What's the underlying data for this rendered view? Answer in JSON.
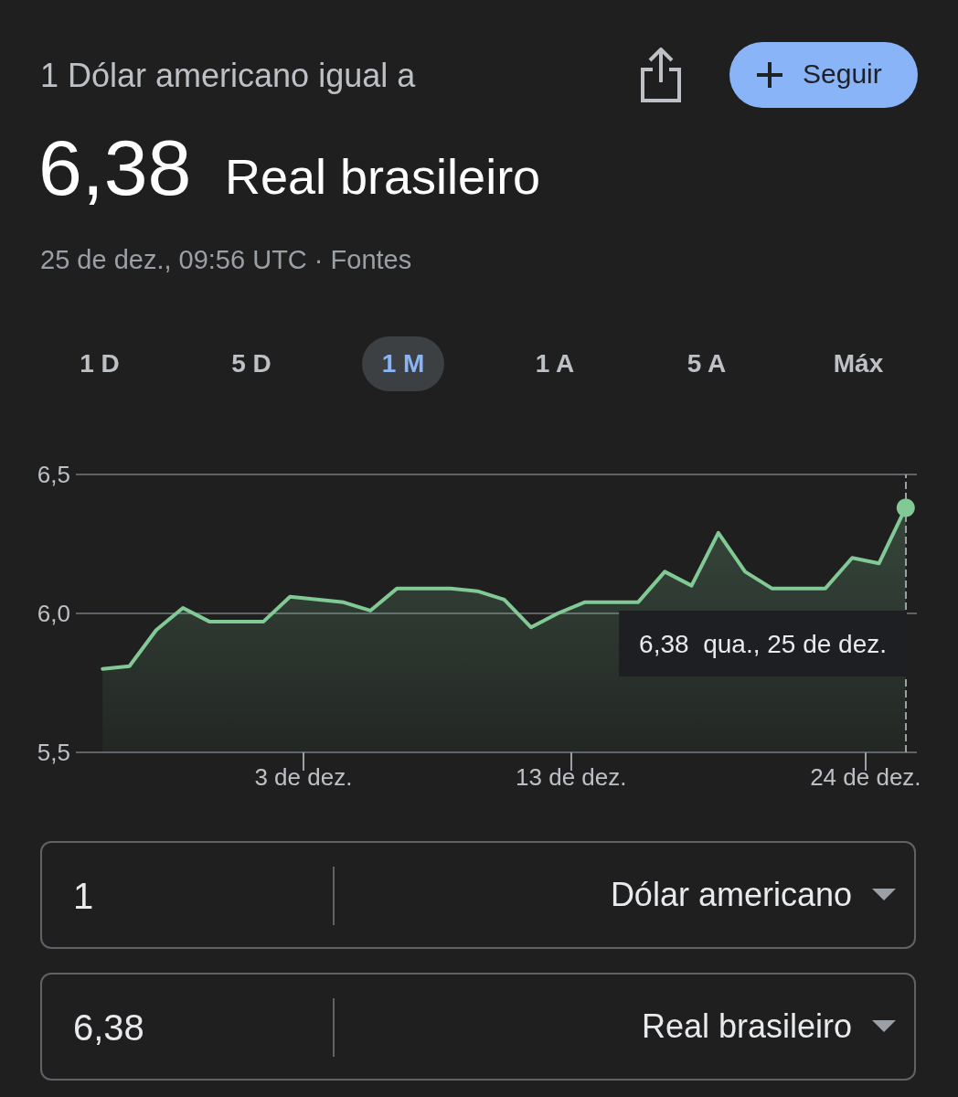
{
  "chart_data": {
    "type": "area",
    "title": "1 Dólar americano igual a",
    "subtitle": "25 de dez., 09:56 UTC · Fontes",
    "x": [
      "--11-25T12:00",
      "--11-26T12:00",
      "--11-27T12:00",
      "--11-28T12:00",
      "--11-29T12:00",
      "--11-30T12:00",
      "--12-01T12:00",
      "--12-02T12:00",
      "--12-03T12:00",
      "--12-04T12:00",
      "--12-05T12:00",
      "--12-06T12:00",
      "--12-07T12:00",
      "--12-08T12:00",
      "--12-09T12:00",
      "--12-10T12:00",
      "--12-11T12:00",
      "--12-12T12:00",
      "--12-13T12:00",
      "--12-14T12:00",
      "--12-15T12:00",
      "--12-16T12:00",
      "--12-17T12:00",
      "--12-18T12:00",
      "--12-19T12:00",
      "--12-20T12:00",
      "--12-21T12:00",
      "--12-22T12:00",
      "--12-23T12:00",
      "--12-24T12:00",
      "--12-25T12:00"
    ],
    "series": [
      {
        "color": "#81c995",
        "values": [
          5.8,
          5.81,
          5.94,
          6.02,
          5.97,
          5.97,
          5.97,
          6.06,
          6.05,
          6.04,
          6.01,
          6.09,
          6.09,
          6.09,
          6.08,
          6.05,
          5.95,
          6.0,
          6.04,
          6.04,
          6.04,
          6.15,
          6.1,
          6.29,
          6.15,
          6.09,
          6.09,
          6.09,
          6.2,
          6.18,
          6.38
        ]
      }
    ],
    "xlim": [
      "--11-24T12:00",
      "--12-25T22:00"
    ],
    "xticks": [
      {
        "value": "--12-03",
        "label": "3 de dez."
      },
      {
        "value": "--12-13",
        "label": "13 de dez."
      },
      {
        "value": "--12-24",
        "label": "24 de dez."
      }
    ],
    "ylim": [
      5.5,
      6.5
    ],
    "yticks": [
      {
        "value": 5.5,
        "label": "5,5"
      },
      {
        "value": 6.0,
        "label": "6,0"
      },
      {
        "value": 6.5,
        "label": "6,5"
      }
    ],
    "grid": "y",
    "marker": "none",
    "line_style": "solid",
    "ref_lines": [
      {
        "axis": "x",
        "value": "--12-25T12:00",
        "line_style": "dashed",
        "color": "#9aa0a6"
      }
    ],
    "annotations": [
      "6,38",
      "Real brasileiro",
      "Seguir",
      "1 D",
      "5 D",
      "1 M",
      "1 A",
      "5 A",
      "Máx",
      "1",
      "Dólar americano",
      "6,38",
      "Real brasileiro",
      "6,38  qua., 25 de dez."
    ]
  }
}
